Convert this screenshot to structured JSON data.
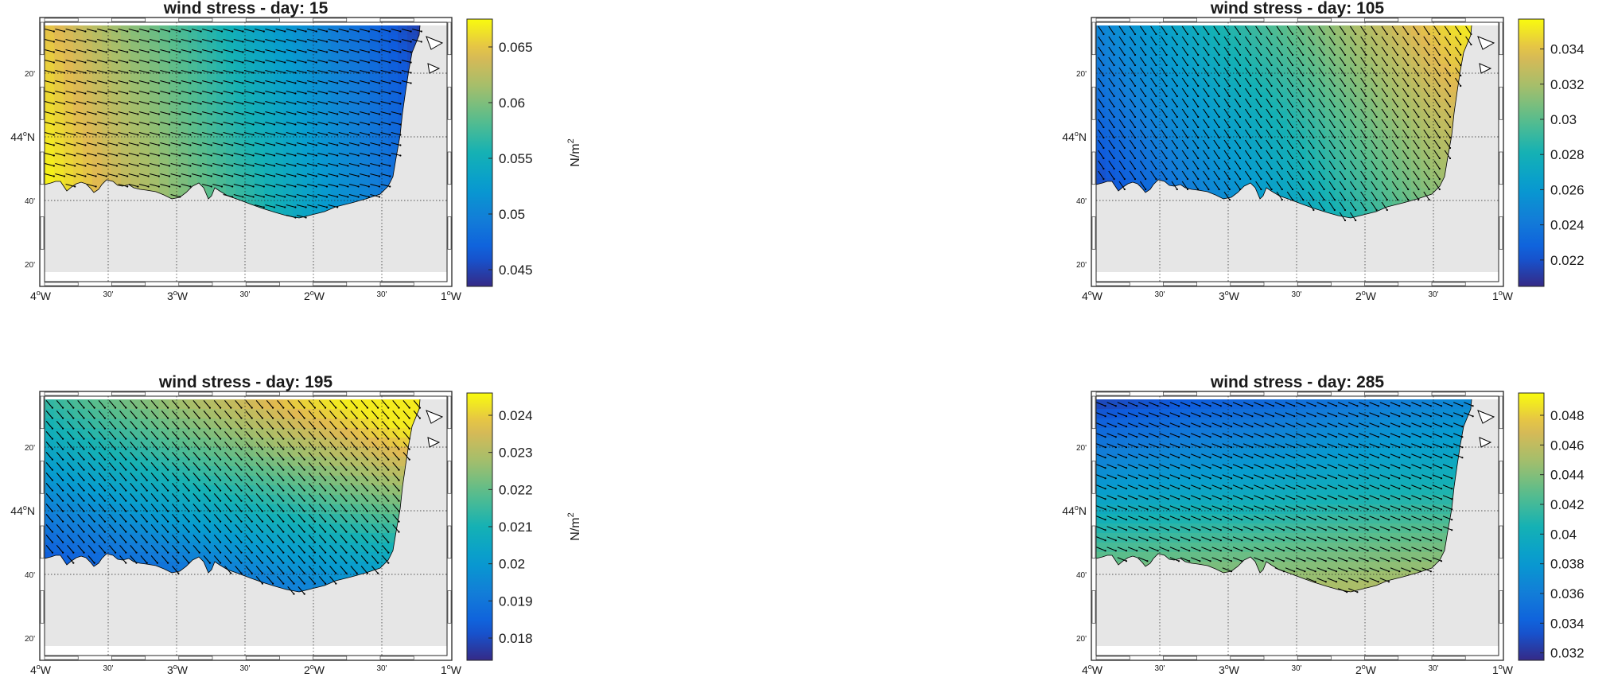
{
  "figure": {
    "coast_fill": "#e6e6e6",
    "frame_color": "#262626",
    "colormap": "parula"
  },
  "chart_data": [
    {
      "type": "heatmap",
      "title": "wind stress - day: 15",
      "colorbar": {
        "label": "N/m",
        "label_sup": "2",
        "ticks": [
          "0.045",
          "0.05",
          "0.055",
          "0.06",
          "0.065"
        ],
        "range": [
          0.0435,
          0.0675
        ]
      },
      "x_ticks": {
        "major": [
          "4",
          "3",
          "2",
          "1"
        ],
        "minor": [
          "30'",
          "30'",
          "30'"
        ]
      },
      "y_ticks": {
        "major_label": "44",
        "minor": [
          "20'",
          "40'",
          "20'"
        ]
      },
      "field": {
        "model": "x_trend",
        "range": [
          0.067,
          0.0445
        ]
      },
      "vector_direction_deg": -14
    },
    {
      "type": "heatmap",
      "title": "wind stress - day: 105",
      "colorbar": {
        "label": "N/m",
        "label_sup": "2",
        "ticks": [
          "0.022",
          "0.024",
          "0.026",
          "0.028",
          "0.03",
          "0.032",
          "0.034"
        ],
        "range": [
          0.0205,
          0.0357
        ]
      },
      "x_ticks": {
        "major": [
          "4",
          "3",
          "2",
          "1"
        ],
        "minor": [
          "30'",
          "30'",
          "30'"
        ]
      },
      "y_ticks": {
        "major_label": "44",
        "minor": [
          "20'",
          "40'",
          "20'"
        ]
      },
      "field": {
        "model": "diag",
        "range": [
          0.021,
          0.0352
        ]
      },
      "vector_direction_deg": -56
    },
    {
      "type": "heatmap",
      "title": "wind stress - day: 195",
      "colorbar": {
        "label": "N/m",
        "label_sup": "2",
        "ticks": [
          "0.018",
          "0.019",
          "0.02",
          "0.021",
          "0.022",
          "0.023",
          "0.024"
        ],
        "range": [
          0.0174,
          0.0246
        ]
      },
      "x_ticks": {
        "major": [
          "4",
          "3",
          "2",
          "1"
        ],
        "minor": [
          "30'",
          "30'",
          "30'"
        ]
      },
      "y_ticks": {
        "major_label": "44",
        "minor": [
          "20'",
          "40'",
          "20'"
        ]
      },
      "field": {
        "model": "diag_rev",
        "range": [
          0.0177,
          0.0244
        ]
      },
      "vector_direction_deg": -50
    },
    {
      "type": "heatmap",
      "title": "wind stress - day: 285",
      "colorbar": {
        "label": "N/m",
        "label_sup": "2",
        "ticks": [
          "0.032",
          "0.034",
          "0.036",
          "0.038",
          "0.04",
          "0.042",
          "0.044",
          "0.046",
          "0.048"
        ],
        "range": [
          0.0315,
          0.0495
        ]
      },
      "x_ticks": {
        "major": [
          "4",
          "3",
          "2",
          "1"
        ],
        "minor": [
          "30'",
          "30'",
          "30'"
        ]
      },
      "y_ticks": {
        "major_label": "44",
        "minor": [
          "20'",
          "40'",
          "20'"
        ]
      },
      "field": {
        "model": "y_trend",
        "range": [
          0.0325,
          0.049
        ]
      },
      "vector_direction_deg": -22
    }
  ]
}
